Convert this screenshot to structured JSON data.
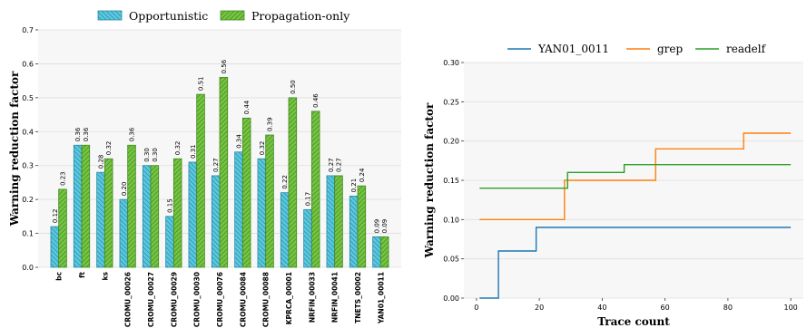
{
  "chart_data": [
    {
      "type": "bar",
      "ylabel": "Warning reduction factor",
      "ylim": [
        0,
        0.7
      ],
      "yticks": [
        0.0,
        0.1,
        0.2,
        0.3,
        0.4,
        0.5,
        0.6,
        0.7
      ],
      "grid": "horizontal",
      "legend_position": "top",
      "categories": [
        "bc",
        "ft",
        "ks",
        "CROMU_00026",
        "CROMU_00027",
        "CROMU_00029",
        "CROMU_00030",
        "CROMU_00076",
        "CROMU_00084",
        "CROMU_00088",
        "KPRCA_00001",
        "NRFIN_00033",
        "NRFIN_00041",
        "TNETS_00002",
        "YAN01_00011"
      ],
      "series": [
        {
          "name": "Opportunistic",
          "color": "#5bc8e0",
          "hatch": "backslash",
          "values": [
            0.12,
            0.36,
            0.28,
            0.2,
            0.3,
            0.15,
            0.31,
            0.27,
            0.34,
            0.32,
            0.22,
            0.17,
            0.27,
            0.21,
            0.09
          ],
          "labels": [
            "0.12",
            "0.36",
            "0.28",
            "0.20",
            "0.30",
            "0.15",
            "0.31",
            "0.27",
            "0.34",
            "0.32",
            "0.22",
            "0.17",
            "0.27",
            "0.21",
            "0.09"
          ]
        },
        {
          "name": "Propagation-only",
          "color": "#76c442",
          "hatch": "slash",
          "values": [
            0.23,
            0.36,
            0.32,
            0.36,
            0.3,
            0.32,
            0.51,
            0.56,
            0.44,
            0.39,
            0.5,
            0.46,
            0.27,
            0.24,
            0.09
          ],
          "labels": [
            "0.23",
            "0.36",
            "0.32",
            "0.36",
            "0.30",
            "0.32",
            "0.51",
            "0.56",
            "0.44",
            "0.39",
            "0.50",
            "0.46",
            "0.27",
            "0.24",
            "0.09"
          ]
        }
      ]
    },
    {
      "type": "line",
      "step": true,
      "xlabel": "Trace count",
      "ylabel": "Warning reduction factor",
      "xlim": [
        -4,
        104
      ],
      "ylim": [
        0,
        0.3
      ],
      "xticks": [
        0,
        20,
        40,
        60,
        80,
        100
      ],
      "yticks": [
        0.0,
        0.05,
        0.1,
        0.15,
        0.2,
        0.25,
        0.3
      ],
      "ytick_labels": [
        "0.00",
        "0.05",
        "0.10",
        "0.15",
        "0.20",
        "0.25",
        "0.30"
      ],
      "grid": "horizontal",
      "legend_position": "top",
      "series": [
        {
          "name": "YAN01_0011",
          "color": "#1f77b4",
          "x": [
            1,
            7,
            19,
            100
          ],
          "y": [
            0.0,
            0.06,
            0.09,
            0.09
          ]
        },
        {
          "name": "grep",
          "color": "#ff7f0e",
          "x": [
            1,
            28,
            57,
            85,
            100
          ],
          "y": [
            0.1,
            0.15,
            0.19,
            0.21,
            0.21
          ]
        },
        {
          "name": "readelf",
          "color": "#2ca02c",
          "x": [
            1,
            29,
            47,
            100
          ],
          "y": [
            0.14,
            0.16,
            0.17,
            0.17
          ]
        }
      ]
    }
  ]
}
